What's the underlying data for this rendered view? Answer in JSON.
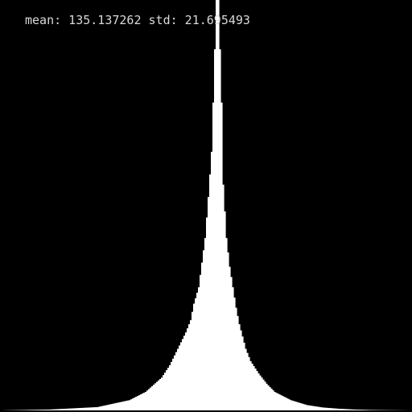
{
  "stats": {
    "text": "mean: 135.137262 std: 21.695493",
    "mean": 135.137262,
    "std": 21.695493
  },
  "colors": {
    "background": "#000000",
    "bars": "#ffffff",
    "text": "#d9d9d9"
  },
  "chart_data": {
    "type": "bar",
    "title": "",
    "xlabel": "",
    "ylabel": "",
    "xlim": [
      0,
      255
    ],
    "ylim": [
      0,
      1
    ],
    "grid": false,
    "legend": "none",
    "x": [
      0,
      30,
      60,
      80,
      90,
      100,
      105,
      110,
      115,
      118,
      120,
      123,
      125,
      127,
      129,
      131,
      132,
      133,
      134,
      135,
      136,
      137,
      138,
      140,
      142,
      144,
      146,
      148,
      150,
      152,
      155,
      160,
      165,
      170,
      180,
      190,
      200,
      210,
      220,
      230,
      240,
      255
    ],
    "values": [
      0.0,
      0.002,
      0.008,
      0.025,
      0.045,
      0.08,
      0.11,
      0.15,
      0.19,
      0.22,
      0.26,
      0.3,
      0.36,
      0.42,
      0.52,
      0.63,
      0.75,
      0.88,
      1.0,
      1.0,
      0.88,
      0.75,
      0.55,
      0.42,
      0.35,
      0.3,
      0.25,
      0.21,
      0.18,
      0.15,
      0.12,
      0.09,
      0.065,
      0.045,
      0.025,
      0.013,
      0.007,
      0.004,
      0.002,
      0.001,
      0.0005,
      0.0
    ]
  }
}
